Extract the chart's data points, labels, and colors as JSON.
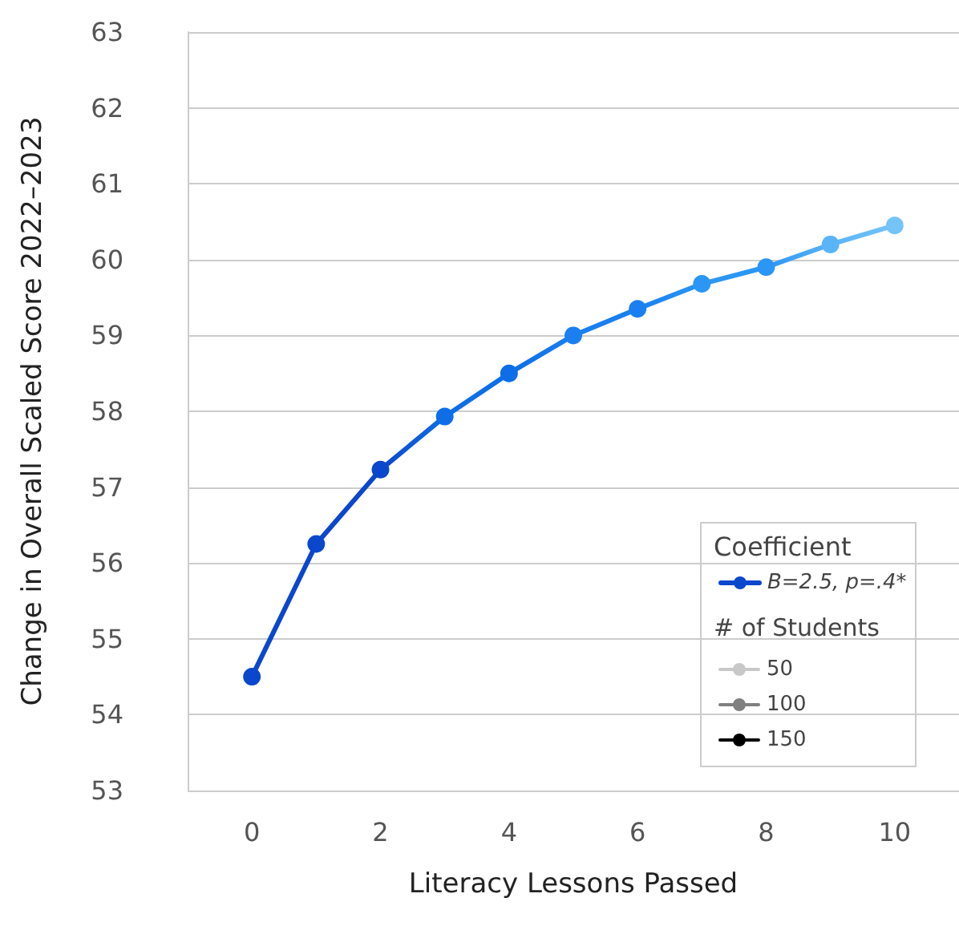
{
  "chart_data": {
    "type": "line",
    "xlabel": "Literacy Lessons Passed",
    "ylabel": "Change in Overall Scaled Score 2022–2023",
    "x": [
      0,
      1,
      2,
      3,
      4,
      5,
      6,
      7,
      8,
      9,
      10
    ],
    "series": [
      {
        "name": "B=2.5, p=.4*",
        "color": "#0b47cc",
        "colors": [
          "#0b47cc",
          "#0b47cc",
          "#0b47cc",
          "#0d6ee8",
          "#0d6ee8",
          "#1a7ff0",
          "#1a7ff0",
          "#2b96f5",
          "#2b96f5",
          "#5ab4f7",
          "#74c4f8"
        ],
        "values": [
          54.5,
          56.25,
          57.23,
          57.93,
          58.5,
          59.0,
          59.35,
          59.68,
          59.9,
          60.2,
          60.45
        ]
      },
      {
        "name": "50",
        "color": "#c8c8c8",
        "values": [
          null,
          null,
          null,
          null,
          null,
          null,
          null,
          null,
          null,
          null,
          null
        ]
      },
      {
        "name": "100",
        "color": "#808080",
        "values": [
          null,
          null,
          null,
          null,
          null,
          null,
          null,
          null,
          null,
          null,
          null
        ]
      },
      {
        "name": "150",
        "color": "#000000",
        "values": [
          null,
          null,
          null,
          null,
          null,
          null,
          null,
          null,
          null,
          null,
          null
        ]
      }
    ],
    "legend_title": "Coefficient",
    "annotations": [
      "# of Students"
    ],
    "xlim": [
      -1,
      11
    ],
    "xticks": [
      0,
      2,
      4,
      6,
      8,
      10
    ],
    "ylim": [
      53,
      63
    ],
    "yticks": [
      53,
      54,
      55,
      56,
      57,
      58,
      59,
      60,
      61,
      62,
      63
    ],
    "grid": "y",
    "legend": "bottom right",
    "marker": "circle",
    "line_style": "solid"
  }
}
